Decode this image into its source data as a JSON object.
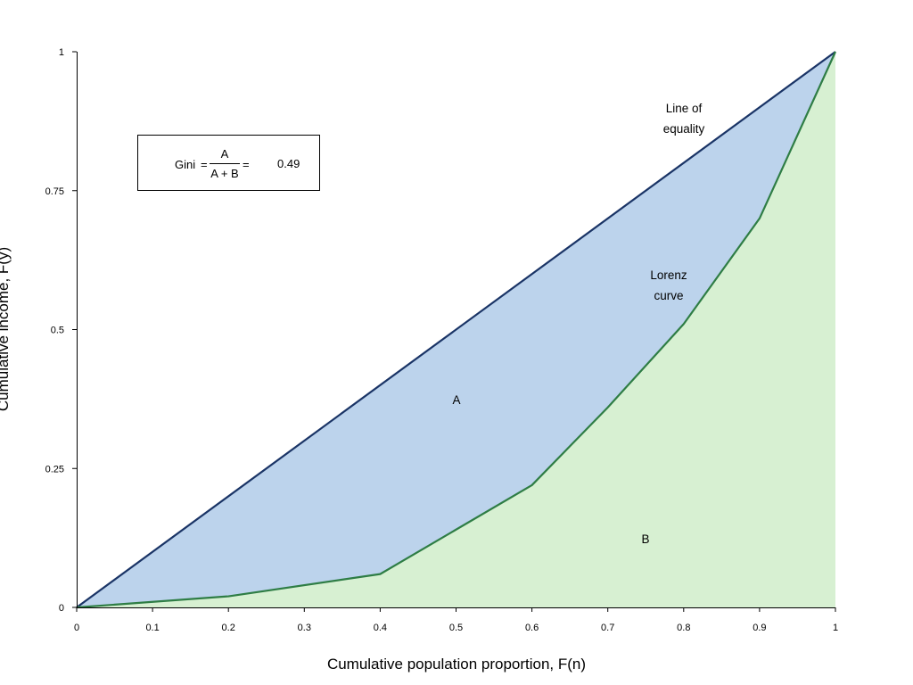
{
  "chart_data": {
    "type": "area",
    "xlabel": "Cumulative population proportion, F(n)",
    "ylabel": "Cumulative income, F(y)",
    "xlim": [
      0,
      1
    ],
    "ylim": [
      0,
      1
    ],
    "x_ticks": [
      "0",
      "0.1",
      "0.2",
      "0.3",
      "0.4",
      "0.5",
      "0.6",
      "0.7",
      "0.8",
      "0.9",
      "1"
    ],
    "y_ticks": [
      "0",
      "0.25",
      "0.5",
      "0.75",
      "1"
    ],
    "grid": false,
    "series": [
      {
        "name": "Line of equality",
        "color": "#1a3466",
        "x": [
          0,
          1
        ],
        "y": [
          0,
          1
        ]
      },
      {
        "name": "Lorenz curve",
        "color": "#2e7d45",
        "x": [
          0,
          0.2,
          0.4,
          0.6,
          0.7,
          0.8,
          0.9,
          1
        ],
        "y": [
          0,
          0.02,
          0.06,
          0.22,
          0.36,
          0.51,
          0.7,
          1
        ]
      }
    ],
    "regions": [
      {
        "label": "A",
        "color": "#bcd3ec",
        "x": 0.5,
        "y": 0.375
      },
      {
        "label": "B",
        "color": "#d7f0d2",
        "x": 0.75,
        "y": 0.125
      }
    ],
    "annotations": {
      "equality_line1": "Line of",
      "equality_line2": "equality",
      "lorenz_line1": "Lorenz",
      "lorenz_line2": "curve"
    },
    "gini": {
      "label": "Gini",
      "equals": "=",
      "numerator": "A",
      "denominator": "A + B",
      "value": "0.49"
    }
  }
}
